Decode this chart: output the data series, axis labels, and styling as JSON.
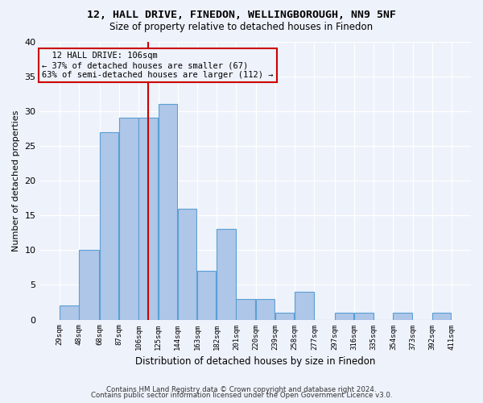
{
  "title1": "12, HALL DRIVE, FINEDON, WELLINGBOROUGH, NN9 5NF",
  "title2": "Size of property relative to detached houses in Finedon",
  "xlabel": "Distribution of detached houses by size in Finedon",
  "ylabel": "Number of detached properties",
  "bins": [
    29,
    48,
    68,
    87,
    106,
    125,
    144,
    163,
    182,
    201,
    220,
    239,
    258,
    277,
    297,
    316,
    335,
    354,
    373,
    392,
    411
  ],
  "counts": [
    2,
    10,
    27,
    29,
    29,
    31,
    16,
    7,
    13,
    3,
    3,
    1,
    4,
    0,
    1,
    1,
    0,
    1,
    0,
    1
  ],
  "highlight_x": 106,
  "bar_color": "#aec6e8",
  "bar_edge_color": "#5a9fd4",
  "highlight_line_color": "#cc0000",
  "annotation_box_color": "#cc0000",
  "annotation_text": "  12 HALL DRIVE: 106sqm\n← 37% of detached houses are smaller (67)\n63% of semi-detached houses are larger (112) →",
  "footer1": "Contains HM Land Registry data © Crown copyright and database right 2024.",
  "footer2": "Contains public sector information licensed under the Open Government Licence v3.0.",
  "ylim": [
    0,
    40
  ],
  "xlim_left": 10,
  "xlim_right": 430,
  "background_color": "#eef2fb"
}
